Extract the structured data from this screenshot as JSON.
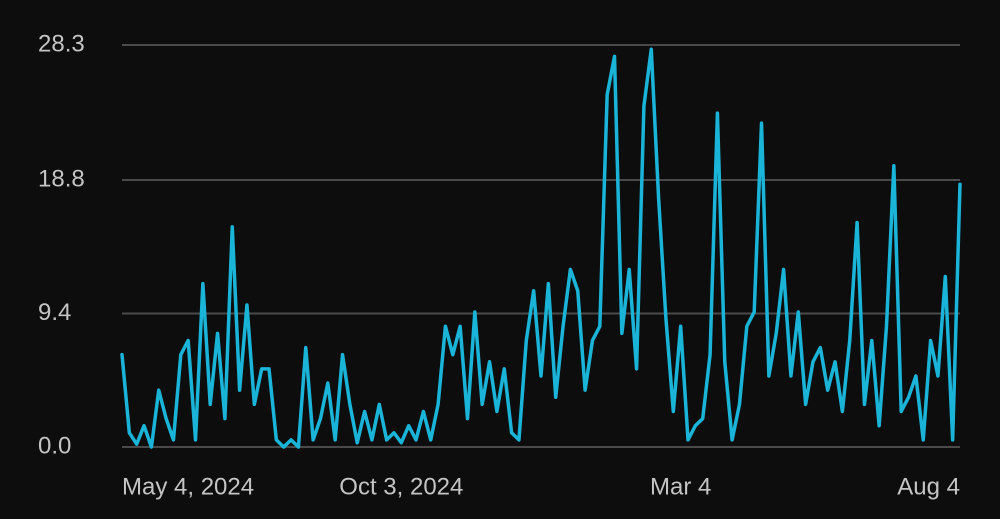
{
  "chart_data": {
    "type": "line",
    "categories": [
      "May 4, 2024",
      null,
      null,
      null,
      null,
      null,
      null,
      null,
      null,
      null,
      null,
      null,
      null,
      null,
      null,
      null,
      null,
      null,
      null,
      null,
      null,
      null,
      null,
      null,
      null,
      null,
      null,
      null,
      null,
      null,
      null,
      null,
      null,
      null,
      null,
      null,
      null,
      null,
      "Oct 3, 2024",
      null,
      null,
      null,
      null,
      null,
      null,
      null,
      null,
      null,
      null,
      null,
      null,
      null,
      null,
      null,
      null,
      null,
      null,
      null,
      null,
      null,
      null,
      null,
      null,
      null,
      null,
      null,
      null,
      null,
      null,
      null,
      null,
      null,
      null,
      null,
      null,
      null,
      "Mar 4",
      null,
      null,
      null,
      null,
      null,
      null,
      null,
      null,
      null,
      null,
      null,
      null,
      null,
      null,
      null,
      null,
      null,
      null,
      null,
      null,
      null,
      null,
      null,
      null,
      null,
      null,
      null,
      null,
      null,
      null,
      null,
      null,
      null,
      null,
      null,
      null,
      null,
      "Aug 4"
    ],
    "values": [
      6.5,
      1.0,
      0.2,
      1.5,
      0,
      4.0,
      2.0,
      0.5,
      6.5,
      7.5,
      0.5,
      11.5,
      3.0,
      8.0,
      2.0,
      15.5,
      4.0,
      10.0,
      3.0,
      5.5,
      5.5,
      0.5,
      0,
      0.5,
      0,
      7.0,
      0.5,
      2.0,
      4.5,
      0.5,
      6.5,
      3.0,
      0.3,
      2.5,
      0.5,
      3.0,
      0.5,
      1.0,
      0.3,
      1.5,
      0.5,
      2.5,
      0.5,
      3.0,
      8.5,
      6.5,
      8.5,
      2.0,
      9.5,
      3.0,
      6.0,
      2.5,
      5.5,
      1.0,
      0.5,
      7.5,
      11.0,
      5.0,
      11.5,
      3.5,
      8.5,
      12.5,
      11.0,
      4.0,
      7.5,
      8.5,
      24.8,
      27.5,
      8.0,
      12.5,
      5.5,
      24.0,
      28.0,
      17.5,
      9.0,
      2.5,
      8.5,
      0.5,
      1.5,
      2.0,
      6.5,
      23.5,
      6.0,
      0.5,
      3.0,
      8.5,
      9.5,
      22.8,
      5.0,
      8.0,
      12.5,
      5.0,
      9.5,
      3.0,
      6.0,
      7.0,
      4.0,
      6.0,
      2.5,
      7.5,
      15.8,
      3.0,
      7.5,
      1.5,
      8.5,
      19.8,
      2.5,
      3.5,
      5.0,
      0.5,
      7.5,
      5.0,
      12.0,
      0.5,
      18.5
    ],
    "color": "#1ab4d8",
    "ylim": [
      0,
      28.3
    ],
    "yticks": [
      {
        "value": 0,
        "label": "0.0"
      },
      9.4,
      18.8,
      28.3
    ],
    "grid": true
  }
}
